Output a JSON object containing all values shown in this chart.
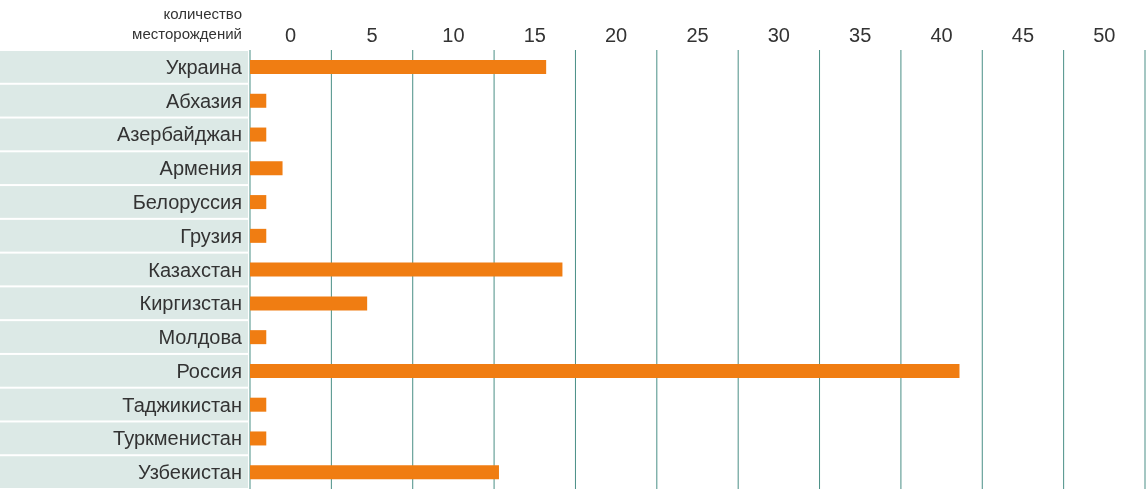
{
  "chart_data": {
    "type": "bar",
    "orientation": "horizontal",
    "xlabel": "количество месторождений",
    "categories": [
      "Украина",
      "Абхазия",
      "Азербайджан",
      "Армения",
      "Белоруссия",
      "Грузия",
      "Казахстан",
      "Киргизстан",
      "Молдова",
      "Россия",
      "Таджикистан",
      "Туркменистан",
      "Узбекистан"
    ],
    "values": [
      18.2,
      1,
      1,
      2,
      1,
      1,
      19.2,
      7.2,
      1,
      43.6,
      1,
      1,
      15.3
    ],
    "base": [
      -2.5,
      -2.5,
      -2.5,
      -2.5,
      -2.5,
      -2.5,
      -2.5,
      -2.5,
      -2.5,
      -2.5,
      -2.5,
      -2.5,
      -2.5
    ],
    "color": "#f07d12",
    "xlim": [
      -2.5,
      52.5
    ],
    "xticks": [
      {
        "value": -2.5,
        "label": null
      },
      0,
      {
        "value": 2.5,
        "label": null
      },
      5,
      {
        "value": 7.5,
        "label": null
      },
      10,
      {
        "value": 12.5,
        "label": null
      },
      15,
      {
        "value": 17.5,
        "label": null
      },
      20,
      {
        "value": 22.5,
        "label": null
      },
      25,
      {
        "value": 27.5,
        "label": null
      },
      30,
      {
        "value": 32.5,
        "label": null
      },
      35,
      {
        "value": 37.5,
        "label": null
      },
      40,
      {
        "value": 42.5,
        "label": null
      },
      45,
      {
        "value": 47.5,
        "label": null
      },
      50,
      {
        "value": 52.5,
        "label": null
      }
    ],
    "grid": "x"
  }
}
